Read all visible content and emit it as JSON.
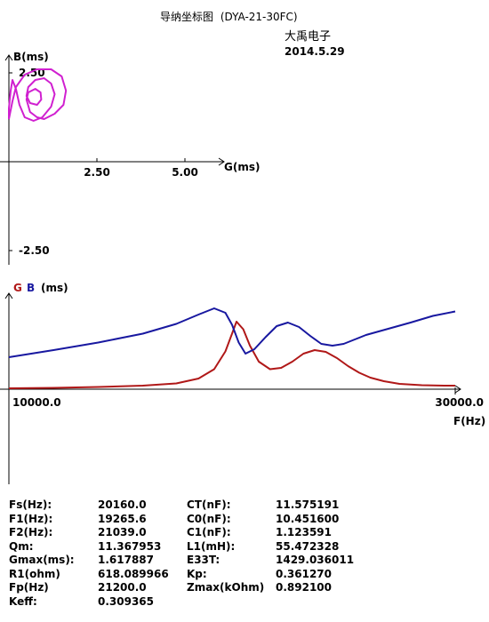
{
  "header": {
    "title": "导纳坐标图",
    "model": "(DYA-21-30FC)",
    "company": "大禹电子",
    "date": "2014.5.29"
  },
  "chart_data": [
    {
      "type": "scatter",
      "name": "admittance-circle",
      "xlabel": "G(ms)",
      "ylabel": "B(ms)",
      "xticks": [
        "2.50",
        "5.00"
      ],
      "yticks": [
        "2.50",
        "-2.50"
      ],
      "xlim": [
        0,
        6.2
      ],
      "ylim": [
        -3,
        3
      ],
      "series": [
        {
          "color": "#d020d0",
          "points": [
            [
              0.0,
              1.2
            ],
            [
              0.1,
              1.7
            ],
            [
              0.2,
              2.1
            ],
            [
              0.45,
              2.45
            ],
            [
              0.8,
              2.6
            ],
            [
              1.2,
              2.6
            ],
            [
              1.5,
              2.4
            ],
            [
              1.62,
              2.0
            ],
            [
              1.55,
              1.6
            ],
            [
              1.3,
              1.35
            ],
            [
              1.0,
              1.2
            ],
            [
              0.8,
              1.25
            ],
            [
              0.6,
              1.4
            ],
            [
              0.5,
              1.75
            ],
            [
              0.55,
              1.95
            ],
            [
              0.75,
              2.05
            ],
            [
              0.9,
              1.95
            ],
            [
              0.92,
              1.75
            ],
            [
              0.8,
              1.6
            ],
            [
              0.6,
              1.65
            ],
            [
              0.5,
              1.85
            ],
            [
              0.55,
              2.1
            ],
            [
              0.75,
              2.3
            ],
            [
              1.0,
              2.35
            ],
            [
              1.2,
              2.2
            ],
            [
              1.3,
              1.9
            ],
            [
              1.2,
              1.55
            ],
            [
              0.95,
              1.25
            ],
            [
              0.7,
              1.15
            ],
            [
              0.45,
              1.25
            ],
            [
              0.3,
              1.6
            ],
            [
              0.2,
              2.05
            ],
            [
              0.1,
              2.3
            ],
            [
              0.05,
              2.0
            ],
            [
              0.0,
              1.5
            ],
            [
              0.0,
              1.2
            ]
          ]
        }
      ]
    },
    {
      "type": "line",
      "name": "frequency-sweep",
      "title_g": "G",
      "title_b": "B",
      "title_unit": "(ms)",
      "xlabel": "F(Hz)",
      "xticks": [
        "10000.0",
        "30000.0"
      ],
      "xlim": [
        10000,
        30000
      ],
      "ylim": [
        -0.2,
        2.0
      ],
      "series": [
        {
          "name": "G",
          "color": "#b01818",
          "x": [
            10000,
            12000,
            14000,
            16000,
            17500,
            18500,
            19200,
            19700,
            20000,
            20200,
            20500,
            20800,
            21200,
            21700,
            22200,
            22700,
            23200,
            23700,
            24200,
            24700,
            25200,
            25700,
            26200,
            26800,
            27500,
            28500,
            29500,
            30000
          ],
          "y": [
            0.02,
            0.03,
            0.05,
            0.08,
            0.13,
            0.24,
            0.45,
            0.85,
            1.25,
            1.52,
            1.35,
            0.98,
            0.62,
            0.45,
            0.48,
            0.62,
            0.8,
            0.88,
            0.84,
            0.7,
            0.52,
            0.37,
            0.26,
            0.18,
            0.12,
            0.09,
            0.08,
            0.08
          ]
        },
        {
          "name": "B",
          "color": "#1818a0",
          "x": [
            10000,
            12000,
            14000,
            16000,
            17500,
            18500,
            19200,
            19700,
            20000,
            20300,
            20600,
            21000,
            21500,
            22000,
            22500,
            23000,
            23500,
            24000,
            24500,
            25000,
            25500,
            26000,
            27000,
            28000,
            29000,
            30000
          ],
          "y": [
            0.72,
            0.88,
            1.05,
            1.25,
            1.47,
            1.68,
            1.82,
            1.72,
            1.45,
            1.05,
            0.8,
            0.9,
            1.17,
            1.42,
            1.5,
            1.4,
            1.2,
            1.02,
            0.98,
            1.02,
            1.12,
            1.22,
            1.36,
            1.5,
            1.65,
            1.75
          ]
        }
      ]
    }
  ],
  "params": {
    "left": [
      {
        "label": "Fs(Hz):",
        "value": "20160.0"
      },
      {
        "label": "F1(Hz):",
        "value": "19265.6"
      },
      {
        "label": "F2(Hz):",
        "value": "21039.0"
      },
      {
        "label": "Qm:",
        "value": "11.367953"
      },
      {
        "label": "Gmax(ms):",
        "value": "1.617887"
      },
      {
        "label": "R1(ohm)",
        "value": "618.089966"
      },
      {
        "label": "Fp(Hz)",
        "value": "21200.0"
      },
      {
        "label": "Keff:",
        "value": "0.309365"
      }
    ],
    "right": [
      {
        "label": "CT(nF):",
        "value": "11.575191"
      },
      {
        "label": "C0(nF):",
        "value": "10.451600"
      },
      {
        "label": "C1(nF):",
        "value": "1.123591"
      },
      {
        "label": "L1(mH):",
        "value": "55.472328"
      },
      {
        "label": "E33T:",
        "value": "1429.036011"
      },
      {
        "label": "Kp:",
        "value": "0.361270"
      },
      {
        "label": "Zmax(kOhm)",
        "value": "0.892100"
      }
    ]
  }
}
